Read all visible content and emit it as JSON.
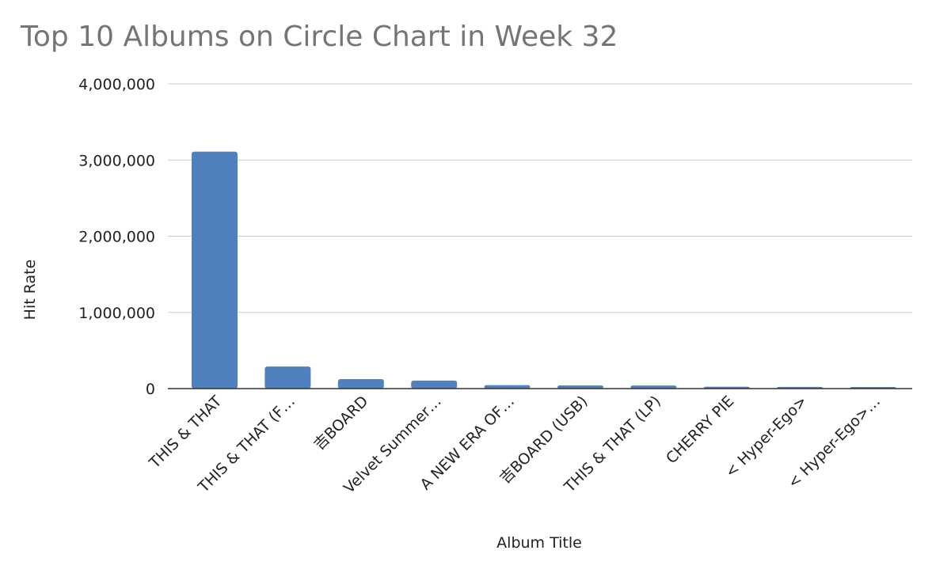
{
  "chart_data": {
    "type": "bar",
    "title": "Top 10 Albums on Circle Chart in Week 32",
    "xlabel": "Album Title",
    "ylabel": "Hit Rate",
    "ylim": [
      0,
      4000000
    ],
    "yticks": [
      "0",
      "1,000,000",
      "2,000,000",
      "3,000,000",
      "4,000,000"
    ],
    "ytick_values": [
      0,
      1000000,
      2000000,
      3000000,
      4000000
    ],
    "grid": true,
    "categories": [
      "THIS & THAT",
      "THIS & THAT (F…",
      "吉BOARD",
      "Velvet Summer…",
      "A NEW ERA OF…",
      "吉BOARD (USB)",
      "THIS & THAT (LP)",
      "CHERRY PIE",
      "< Hyper-Ego>",
      "< Hyper-Ego>…"
    ],
    "values": [
      3110000,
      290000,
      125000,
      105000,
      45000,
      42000,
      40000,
      25000,
      22000,
      21000
    ],
    "colors": {
      "bar": "#4e81bd",
      "grid": "#cccccc",
      "axis": "#333333"
    }
  }
}
